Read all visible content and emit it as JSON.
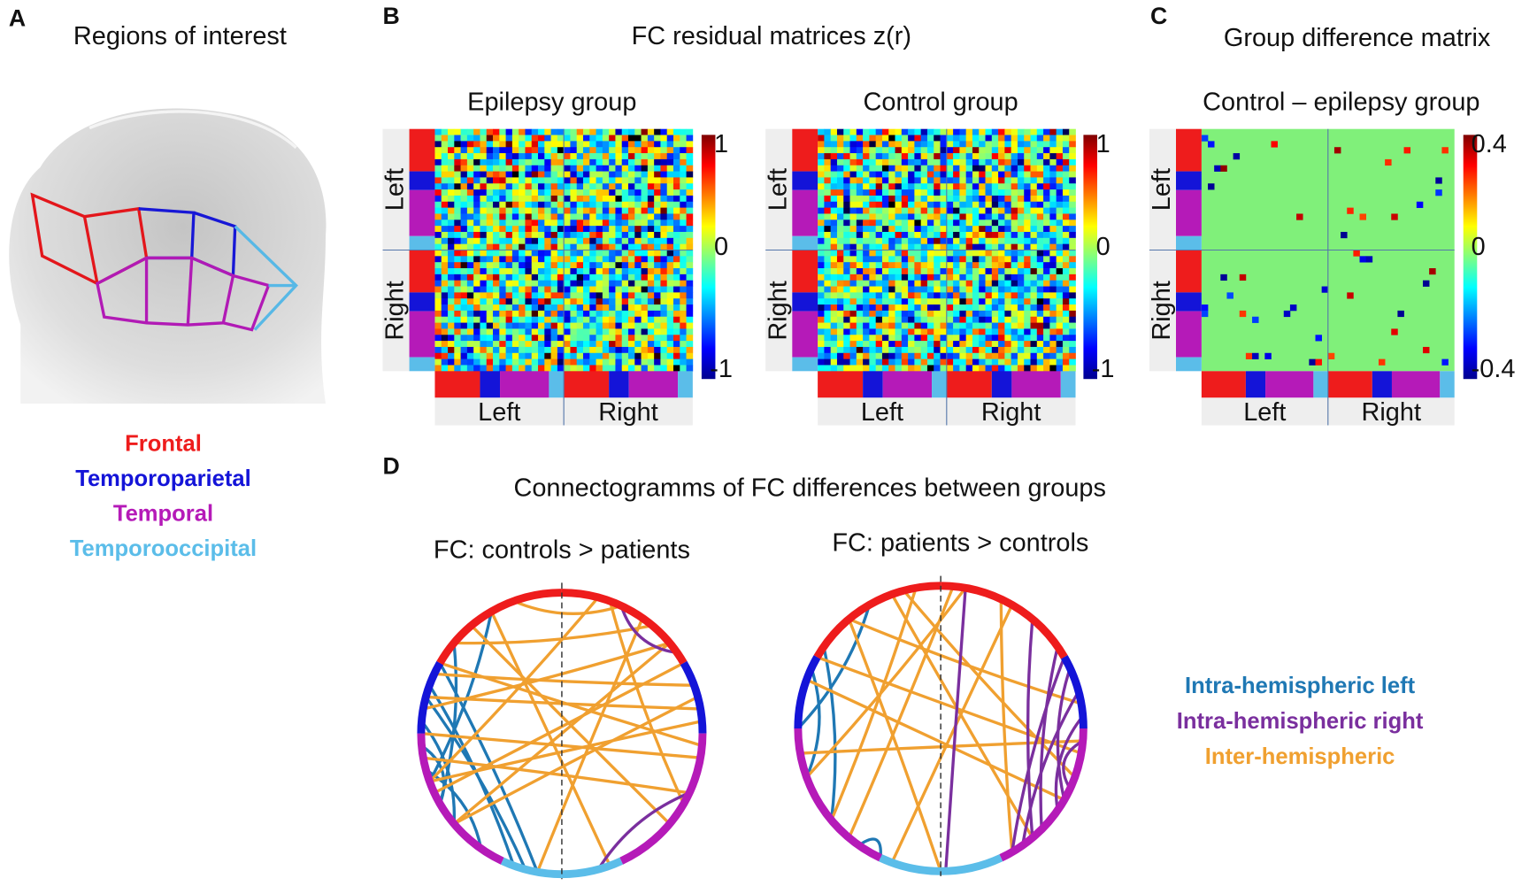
{
  "panels": {
    "A": {
      "letter": "A",
      "title": "Regions of interest",
      "legend": [
        "Frontal",
        "Temporoparietal",
        "Temporal",
        "Temporooccipital"
      ]
    },
    "B": {
      "letter": "B",
      "title": "FC residual matrices z(r)",
      "matrices": [
        {
          "title": "Epilepsy group",
          "row_labels": [
            "Left",
            "Right"
          ],
          "col_labels": [
            "Left",
            "Right"
          ],
          "colorbar_ticks": [
            "1",
            "0",
            "-1"
          ]
        },
        {
          "title": "Control group",
          "row_labels": [
            "Left",
            "Right"
          ],
          "col_labels": [
            "Left",
            "Right"
          ],
          "colorbar_ticks": [
            "1",
            "0",
            "-1"
          ]
        }
      ]
    },
    "C": {
      "letter": "C",
      "title": "Group difference matrix",
      "matrix": {
        "title": "Control – epilepsy group",
        "row_labels": [
          "Left",
          "Right"
        ],
        "col_labels": [
          "Left",
          "Right"
        ],
        "colorbar_ticks": [
          "0.4",
          "0",
          "-0.4"
        ]
      }
    },
    "D": {
      "letter": "D",
      "title": "Connectogramms of FC differences between groups",
      "plots": [
        {
          "title": "FC: controls > patients"
        },
        {
          "title": "FC: patients  > controls"
        }
      ],
      "legend": [
        "Intra-hemispheric left",
        "Intra-hemispheric right",
        "Inter-hemispheric"
      ]
    }
  }
}
